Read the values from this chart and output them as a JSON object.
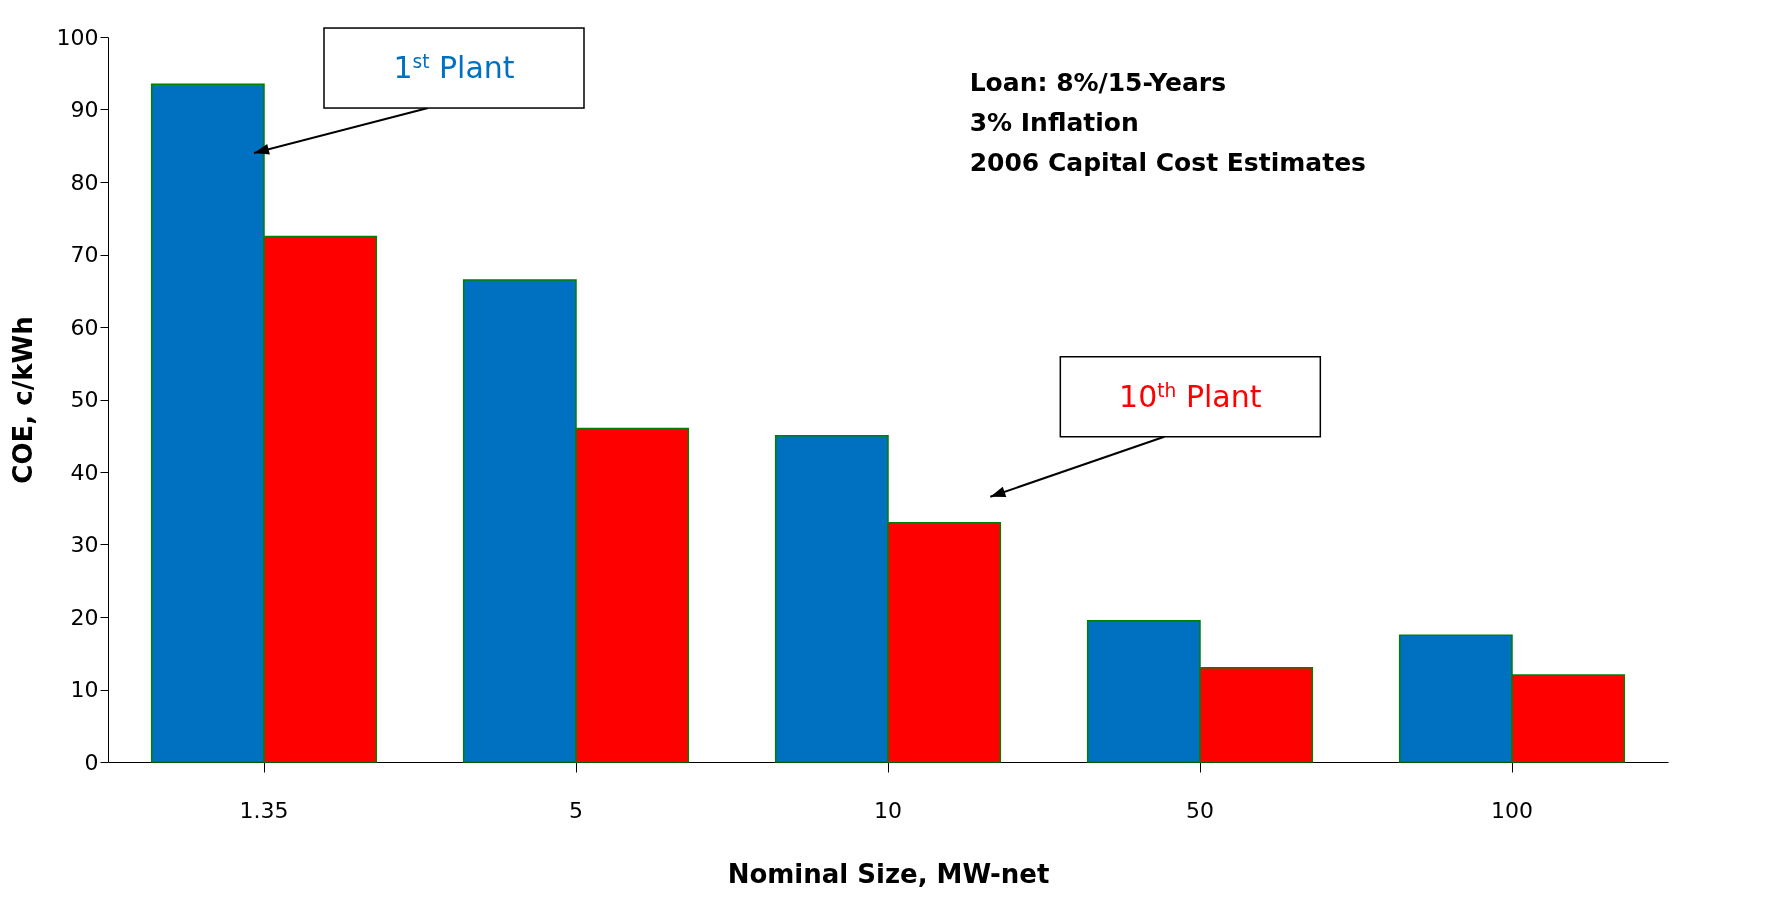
{
  "chart_data": {
    "type": "bar",
    "xlabel": "Nominal Size, MW-net",
    "ylabel": "COE, c/kWh",
    "categories": [
      "1.35",
      "5",
      "10",
      "50",
      "100"
    ],
    "series": [
      {
        "name": "1$^{st}$ Plant",
        "color": "#0070c0",
        "values": [
          93.5,
          66.5,
          45,
          19.5,
          17.5
        ]
      },
      {
        "name": "10$^{th}$ Plant",
        "color": "#ff0000",
        "values": [
          72.5,
          46,
          33,
          13,
          12
        ]
      }
    ],
    "ylim": [
      0,
      100
    ],
    "yticks": [
      0,
      10,
      20,
      30,
      40,
      50,
      60,
      70,
      80,
      90,
      100
    ],
    "annotations": [
      "Loan: 8%/15-Years",
      "3% Inflation",
      "2006 Capital Cost Estimates"
    ]
  }
}
